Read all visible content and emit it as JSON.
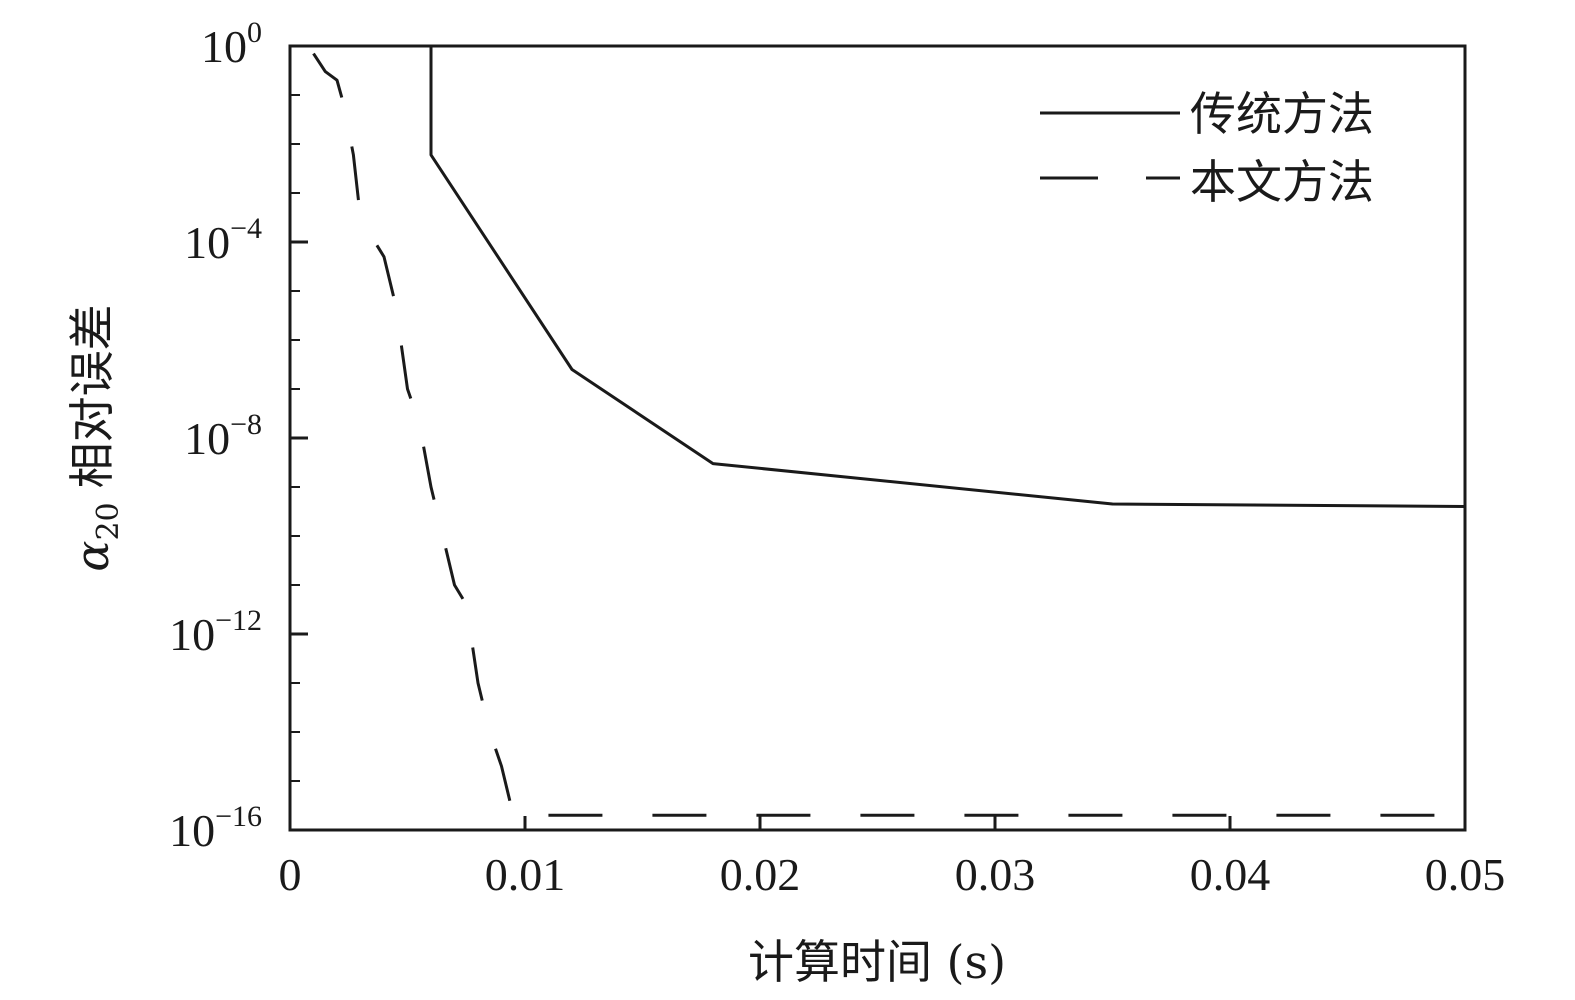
{
  "chart_data": {
    "type": "line",
    "y_scale": "log",
    "grid": false,
    "legend_position": "top-right",
    "xlim": [
      0,
      0.05
    ],
    "ylim": [
      1e-16,
      1
    ],
    "xlabel": "计算时间 (s)",
    "ylabel_symbol": "α",
    "ylabel_subscript": "20",
    "ylabel_text": "相对误差",
    "x_ticks": [
      {
        "value": 0,
        "label": "0"
      },
      {
        "value": 0.01,
        "label": "0.01"
      },
      {
        "value": 0.02,
        "label": "0.02"
      },
      {
        "value": 0.03,
        "label": "0.03"
      },
      {
        "value": 0.04,
        "label": "0.04"
      },
      {
        "value": 0.05,
        "label": "0.05"
      }
    ],
    "y_ticks": [
      {
        "value": 1,
        "base": "10",
        "exp": "0"
      },
      {
        "value": 0.0001,
        "base": "10",
        "exp": "−4"
      },
      {
        "value": 1e-08,
        "base": "10",
        "exp": "−8"
      },
      {
        "value": 1e-12,
        "base": "10",
        "exp": "−12"
      },
      {
        "value": 1e-16,
        "base": "10",
        "exp": "−16"
      }
    ],
    "series": [
      {
        "name": "传统方法",
        "style": "solid",
        "color": "#1a1a1a",
        "points": [
          [
            0.006,
            1
          ],
          [
            0.006,
            0.006
          ],
          [
            0.012,
            2.5e-07
          ],
          [
            0.018,
            3e-09
          ],
          [
            0.035,
            4.5e-10
          ],
          [
            0.05,
            4e-10
          ]
        ]
      },
      {
        "name": "本文方法",
        "style": "dashed",
        "color": "#1a1a1a",
        "points": [
          [
            0.001,
            0.7
          ],
          [
            0.0015,
            0.3
          ],
          [
            0.002,
            0.2
          ],
          [
            0.0023,
            0.06
          ],
          [
            0.0027,
            0.006
          ],
          [
            0.003,
            0.0003
          ],
          [
            0.004,
            5e-05
          ],
          [
            0.0045,
            5e-06
          ],
          [
            0.005,
            1e-07
          ],
          [
            0.0055,
            2e-08
          ],
          [
            0.006,
            1e-09
          ],
          [
            0.0065,
            1e-10
          ],
          [
            0.007,
            1e-11
          ],
          [
            0.0075,
            4e-12
          ],
          [
            0.008,
            1e-13
          ],
          [
            0.0085,
            1e-14
          ],
          [
            0.009,
            2e-15
          ],
          [
            0.0095,
            2e-16
          ],
          [
            0.05,
            2e-16
          ]
        ]
      }
    ]
  }
}
